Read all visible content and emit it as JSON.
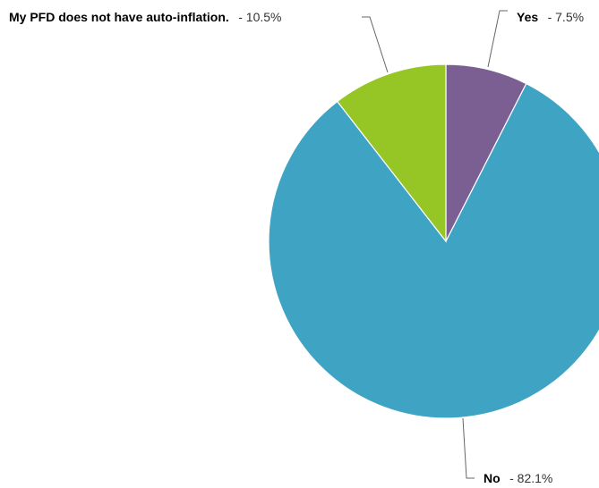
{
  "chart_data": {
    "type": "pie",
    "title": "",
    "slices": [
      {
        "label": "Yes",
        "value": 7.5,
        "value_text": "- 7.5%",
        "color": "#7b5f93"
      },
      {
        "label": "No",
        "value": 82.1,
        "value_text": "- 82.1%",
        "color": "#3fa3c4"
      },
      {
        "label": "My PFD does not have auto-inflation.",
        "value": 10.5,
        "value_text": "- 10.5%",
        "color": "#95c625"
      }
    ],
    "slice_border_color": "#ffffff",
    "start": "12 o'clock, clockwise",
    "legend": "none"
  }
}
